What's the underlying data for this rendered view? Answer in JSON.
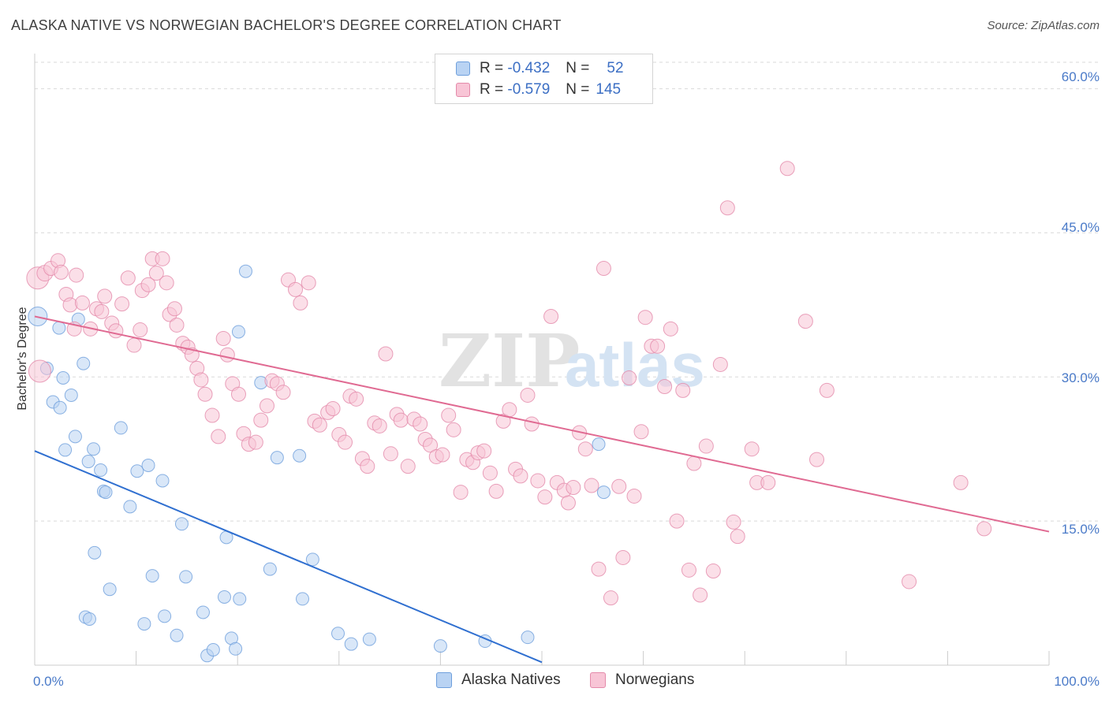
{
  "chart_data": {
    "type": "scatter",
    "title": "ALASKA NATIVE VS NORWEGIAN BACHELOR'S DEGREE CORRELATION CHART",
    "source": "Source: ZipAtlas.com",
    "ylabel": "Bachelor's Degree",
    "watermark": {
      "zip": "ZIP",
      "atlas": "atlas"
    },
    "xlim": [
      0,
      100
    ],
    "ylim": [
      0,
      63
    ],
    "x_tick_labels": [
      "0.0%",
      "100.0%"
    ],
    "y_ticks": [
      {
        "value": 15,
        "label": "15.0%"
      },
      {
        "value": 30,
        "label": "30.0%"
      },
      {
        "value": 45,
        "label": "45.0%"
      },
      {
        "value": 60,
        "label": "60.0%"
      }
    ],
    "legend": [
      {
        "r_label": "R =",
        "r_value": "-0.432",
        "n_label": "N =",
        "n_value": "52"
      },
      {
        "r_label": "R =",
        "r_value": "-0.579",
        "n_label": "N =",
        "n_value": "145"
      }
    ],
    "series": [
      {
        "name": "Alaska Natives",
        "color": "#6e9fdc",
        "fill": "#b9d3f3",
        "trend": {
          "x": [
            0,
            50
          ],
          "y": [
            22.3,
            0.3
          ],
          "color": "#2f6fd0"
        },
        "points": [
          [
            0.3,
            36.3,
            12
          ],
          [
            1.2,
            30.9,
            8
          ],
          [
            1.8,
            27.4,
            8
          ],
          [
            2.4,
            35.1,
            8
          ],
          [
            2.5,
            26.8,
            8
          ],
          [
            2.8,
            29.9,
            8
          ],
          [
            3.0,
            22.4,
            8
          ],
          [
            3.6,
            28.1,
            8
          ],
          [
            4.0,
            23.8,
            8
          ],
          [
            4.3,
            36.0,
            8
          ],
          [
            4.8,
            31.4,
            8
          ],
          [
            5.3,
            21.2,
            8
          ],
          [
            5.8,
            22.5,
            8
          ],
          [
            5.0,
            5.0,
            8
          ],
          [
            5.4,
            4.8,
            8
          ],
          [
            5.9,
            11.7,
            8
          ],
          [
            6.5,
            20.3,
            8
          ],
          [
            6.8,
            18.1,
            8
          ],
          [
            7.0,
            18.0,
            8
          ],
          [
            7.4,
            7.9,
            8
          ],
          [
            8.5,
            24.7,
            8
          ],
          [
            9.4,
            16.5,
            8
          ],
          [
            10.1,
            20.2,
            8
          ],
          [
            10.8,
            4.3,
            8
          ],
          [
            11.2,
            20.8,
            8
          ],
          [
            11.6,
            9.3,
            8
          ],
          [
            12.6,
            19.2,
            8
          ],
          [
            12.8,
            5.1,
            8
          ],
          [
            14.0,
            3.1,
            8
          ],
          [
            14.5,
            14.7,
            8
          ],
          [
            14.9,
            9.2,
            8
          ],
          [
            16.6,
            5.5,
            8
          ],
          [
            17.0,
            1.0,
            8
          ],
          [
            17.6,
            1.6,
            8
          ],
          [
            18.7,
            7.1,
            8
          ],
          [
            18.9,
            13.3,
            8
          ],
          [
            19.4,
            2.8,
            8
          ],
          [
            19.8,
            1.7,
            8
          ],
          [
            20.1,
            34.7,
            8
          ],
          [
            20.8,
            41.0,
            8
          ],
          [
            20.2,
            6.9,
            8
          ],
          [
            22.3,
            29.4,
            8
          ],
          [
            23.2,
            10.0,
            8
          ],
          [
            23.9,
            21.6,
            8
          ],
          [
            26.1,
            21.8,
            8
          ],
          [
            26.4,
            6.9,
            8
          ],
          [
            27.4,
            11.0,
            8
          ],
          [
            29.9,
            3.3,
            8
          ],
          [
            31.2,
            2.2,
            8
          ],
          [
            33.0,
            2.7,
            8
          ],
          [
            40.0,
            2.0,
            8
          ],
          [
            44.4,
            2.5,
            8
          ],
          [
            48.6,
            2.9,
            8
          ],
          [
            55.6,
            23.0,
            8
          ],
          [
            56.1,
            18.0,
            8
          ]
        ]
      },
      {
        "name": "Norwegians",
        "color": "#e48aaa",
        "fill": "#f8c5d6",
        "trend": {
          "x": [
            0,
            100
          ],
          "y": [
            36.3,
            13.9
          ],
          "color": "#e06a92"
        },
        "points": [
          [
            0.3,
            40.3,
            14
          ],
          [
            0.5,
            30.6,
            14
          ],
          [
            1.0,
            40.8,
            10
          ],
          [
            1.6,
            41.3,
            9
          ],
          [
            2.3,
            42.1,
            9
          ],
          [
            2.6,
            40.9,
            9
          ],
          [
            3.1,
            38.6,
            9
          ],
          [
            3.5,
            37.5,
            9
          ],
          [
            3.9,
            35.0,
            9
          ],
          [
            4.1,
            40.6,
            9
          ],
          [
            4.7,
            37.7,
            9
          ],
          [
            5.5,
            35.0,
            9
          ],
          [
            6.1,
            37.1,
            9
          ],
          [
            6.6,
            36.8,
            9
          ],
          [
            6.9,
            38.4,
            9
          ],
          [
            7.6,
            35.6,
            9
          ],
          [
            8.0,
            34.8,
            9
          ],
          [
            8.6,
            37.6,
            9
          ],
          [
            9.2,
            40.3,
            9
          ],
          [
            9.8,
            33.3,
            9
          ],
          [
            10.4,
            34.9,
            9
          ],
          [
            10.6,
            39.0,
            9
          ],
          [
            11.2,
            39.6,
            9
          ],
          [
            11.6,
            42.3,
            9
          ],
          [
            12.0,
            40.8,
            9
          ],
          [
            12.6,
            42.3,
            9
          ],
          [
            13.0,
            39.8,
            9
          ],
          [
            13.3,
            36.5,
            9
          ],
          [
            13.8,
            37.1,
            9
          ],
          [
            14.0,
            35.4,
            9
          ],
          [
            14.6,
            33.5,
            9
          ],
          [
            15.1,
            33.1,
            9
          ],
          [
            15.5,
            32.3,
            9
          ],
          [
            16.0,
            30.9,
            9
          ],
          [
            16.4,
            29.7,
            9
          ],
          [
            16.8,
            28.2,
            9
          ],
          [
            17.5,
            26.0,
            9
          ],
          [
            18.1,
            23.8,
            9
          ],
          [
            18.6,
            34.0,
            9
          ],
          [
            19.0,
            32.3,
            9
          ],
          [
            19.5,
            29.3,
            9
          ],
          [
            20.1,
            28.2,
            9
          ],
          [
            20.6,
            24.1,
            9
          ],
          [
            21.1,
            23.0,
            9
          ],
          [
            21.8,
            23.2,
            9
          ],
          [
            22.3,
            25.5,
            9
          ],
          [
            22.9,
            27.0,
            9
          ],
          [
            23.4,
            29.6,
            9
          ],
          [
            23.9,
            29.3,
            9
          ],
          [
            24.5,
            28.4,
            9
          ],
          [
            25.0,
            40.1,
            9
          ],
          [
            25.7,
            39.1,
            9
          ],
          [
            26.2,
            37.7,
            9
          ],
          [
            27.0,
            39.8,
            9
          ],
          [
            27.6,
            25.4,
            9
          ],
          [
            28.1,
            25.0,
            9
          ],
          [
            28.9,
            26.3,
            9
          ],
          [
            29.4,
            26.7,
            9
          ],
          [
            30.0,
            24.0,
            9
          ],
          [
            30.6,
            23.2,
            9
          ],
          [
            31.1,
            28.0,
            9
          ],
          [
            31.7,
            27.7,
            9
          ],
          [
            32.3,
            21.5,
            9
          ],
          [
            32.8,
            20.7,
            9
          ],
          [
            33.5,
            25.2,
            9
          ],
          [
            34.0,
            24.9,
            9
          ],
          [
            34.6,
            32.4,
            9
          ],
          [
            35.1,
            22.0,
            9
          ],
          [
            35.7,
            26.1,
            9
          ],
          [
            36.1,
            25.5,
            9
          ],
          [
            36.8,
            20.7,
            9
          ],
          [
            37.4,
            25.6,
            9
          ],
          [
            38.0,
            25.1,
            9
          ],
          [
            38.5,
            23.5,
            9
          ],
          [
            39.0,
            22.9,
            9
          ],
          [
            39.6,
            21.7,
            9
          ],
          [
            40.2,
            21.9,
            9
          ],
          [
            40.8,
            26.0,
            9
          ],
          [
            41.3,
            24.5,
            9
          ],
          [
            42.0,
            18.0,
            9
          ],
          [
            42.6,
            21.4,
            9
          ],
          [
            43.2,
            21.1,
            9
          ],
          [
            43.7,
            22.1,
            9
          ],
          [
            44.3,
            22.3,
            9
          ],
          [
            44.9,
            20.0,
            9
          ],
          [
            45.5,
            18.1,
            9
          ],
          [
            46.2,
            25.4,
            9
          ],
          [
            46.8,
            26.6,
            9
          ],
          [
            47.4,
            20.4,
            9
          ],
          [
            47.9,
            19.7,
            9
          ],
          [
            48.6,
            28.1,
            9
          ],
          [
            49.0,
            25.1,
            9
          ],
          [
            49.6,
            19.2,
            9
          ],
          [
            50.3,
            17.5,
            9
          ],
          [
            50.9,
            36.3,
            9
          ],
          [
            51.5,
            19.0,
            9
          ],
          [
            52.2,
            18.2,
            9
          ],
          [
            52.6,
            16.9,
            9
          ],
          [
            53.1,
            18.5,
            9
          ],
          [
            53.7,
            24.2,
            9
          ],
          [
            54.3,
            22.5,
            9
          ],
          [
            54.9,
            18.7,
            9
          ],
          [
            55.6,
            10.0,
            9
          ],
          [
            56.1,
            41.3,
            9
          ],
          [
            56.8,
            7.0,
            9
          ],
          [
            57.6,
            18.6,
            9
          ],
          [
            58.0,
            11.2,
            9
          ],
          [
            58.6,
            29.9,
            9
          ],
          [
            59.1,
            17.6,
            9
          ],
          [
            59.8,
            24.3,
            9
          ],
          [
            60.2,
            36.2,
            9
          ],
          [
            60.8,
            33.2,
            9
          ],
          [
            61.4,
            33.2,
            9
          ],
          [
            62.1,
            29.0,
            9
          ],
          [
            62.7,
            35.0,
            9
          ],
          [
            63.3,
            15.0,
            9
          ],
          [
            63.9,
            28.6,
            9
          ],
          [
            64.5,
            9.9,
            9
          ],
          [
            65.0,
            21.0,
            9
          ],
          [
            65.6,
            7.3,
            9
          ],
          [
            66.2,
            22.8,
            9
          ],
          [
            66.9,
            9.8,
            9
          ],
          [
            67.6,
            31.3,
            9
          ],
          [
            68.3,
            47.6,
            9
          ],
          [
            68.9,
            14.9,
            9
          ],
          [
            69.3,
            13.4,
            9
          ],
          [
            70.7,
            22.5,
            9
          ],
          [
            71.2,
            19.0,
            9
          ],
          [
            72.3,
            19.0,
            9
          ],
          [
            74.2,
            51.7,
            9
          ],
          [
            76.0,
            35.8,
            9
          ],
          [
            77.1,
            21.4,
            9
          ],
          [
            78.1,
            28.6,
            9
          ],
          [
            86.2,
            8.7,
            9
          ],
          [
            91.3,
            19.0,
            9
          ],
          [
            93.6,
            14.2,
            9
          ]
        ]
      }
    ]
  }
}
